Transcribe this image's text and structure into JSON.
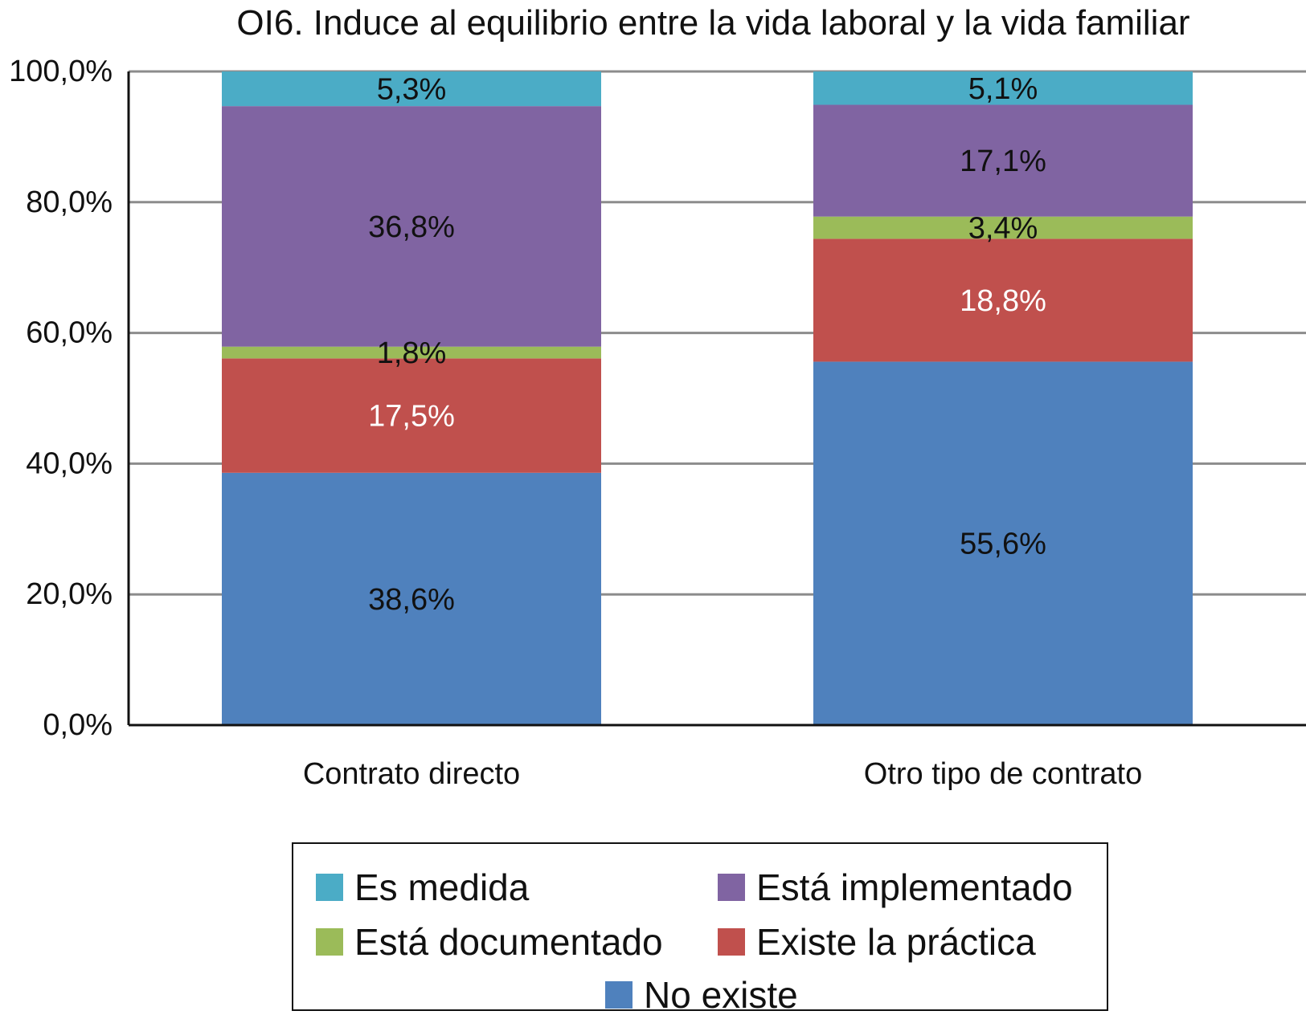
{
  "chart_data": {
    "type": "bar",
    "stacked": true,
    "title": "OI6. Induce al equilibrio entre la vida laboral y la vida familiar",
    "categories": [
      "Contrato directo",
      "Otro tipo de contrato"
    ],
    "ylim": [
      0,
      100
    ],
    "yticks": [
      "0,0%",
      "20,0%",
      "40,0%",
      "60,0%",
      "80,0%",
      "100,0%"
    ],
    "grid": true,
    "legend_position": "bottom",
    "series": [
      {
        "name": "No existe",
        "color": "#4F81BD",
        "values": [
          38.6,
          55.6
        ],
        "labels": [
          "38,6%",
          "55,6%"
        ],
        "label_color": "#111111"
      },
      {
        "name": "Existe la práctica",
        "color": "#C0504D",
        "values": [
          17.5,
          18.8
        ],
        "labels": [
          "17,5%",
          "18,8%"
        ],
        "label_color": "#ffffff"
      },
      {
        "name": "Está documentado",
        "color": "#9BBB59",
        "values": [
          1.8,
          3.4
        ],
        "labels": [
          "1,8%",
          "3,4%"
        ],
        "label_color": "#111111"
      },
      {
        "name": "Está implementado",
        "color": "#8064A2",
        "values": [
          36.8,
          17.1
        ],
        "labels": [
          "36,8%",
          "17,1%"
        ],
        "label_color": "#111111"
      },
      {
        "name": "Es medida",
        "color": "#4BACC6",
        "values": [
          5.3,
          5.1
        ],
        "labels": [
          "5,3%",
          "5,1%"
        ],
        "label_color": "#111111"
      }
    ]
  },
  "legend": {
    "items": [
      {
        "label": "Es medida",
        "color": "#4BACC6"
      },
      {
        "label": "Está implementado",
        "color": "#8064A2"
      },
      {
        "label": "Está documentado",
        "color": "#9BBB59"
      },
      {
        "label": "Existe la práctica",
        "color": "#C0504D"
      },
      {
        "label": "No existe",
        "color": "#4F81BD"
      }
    ]
  }
}
